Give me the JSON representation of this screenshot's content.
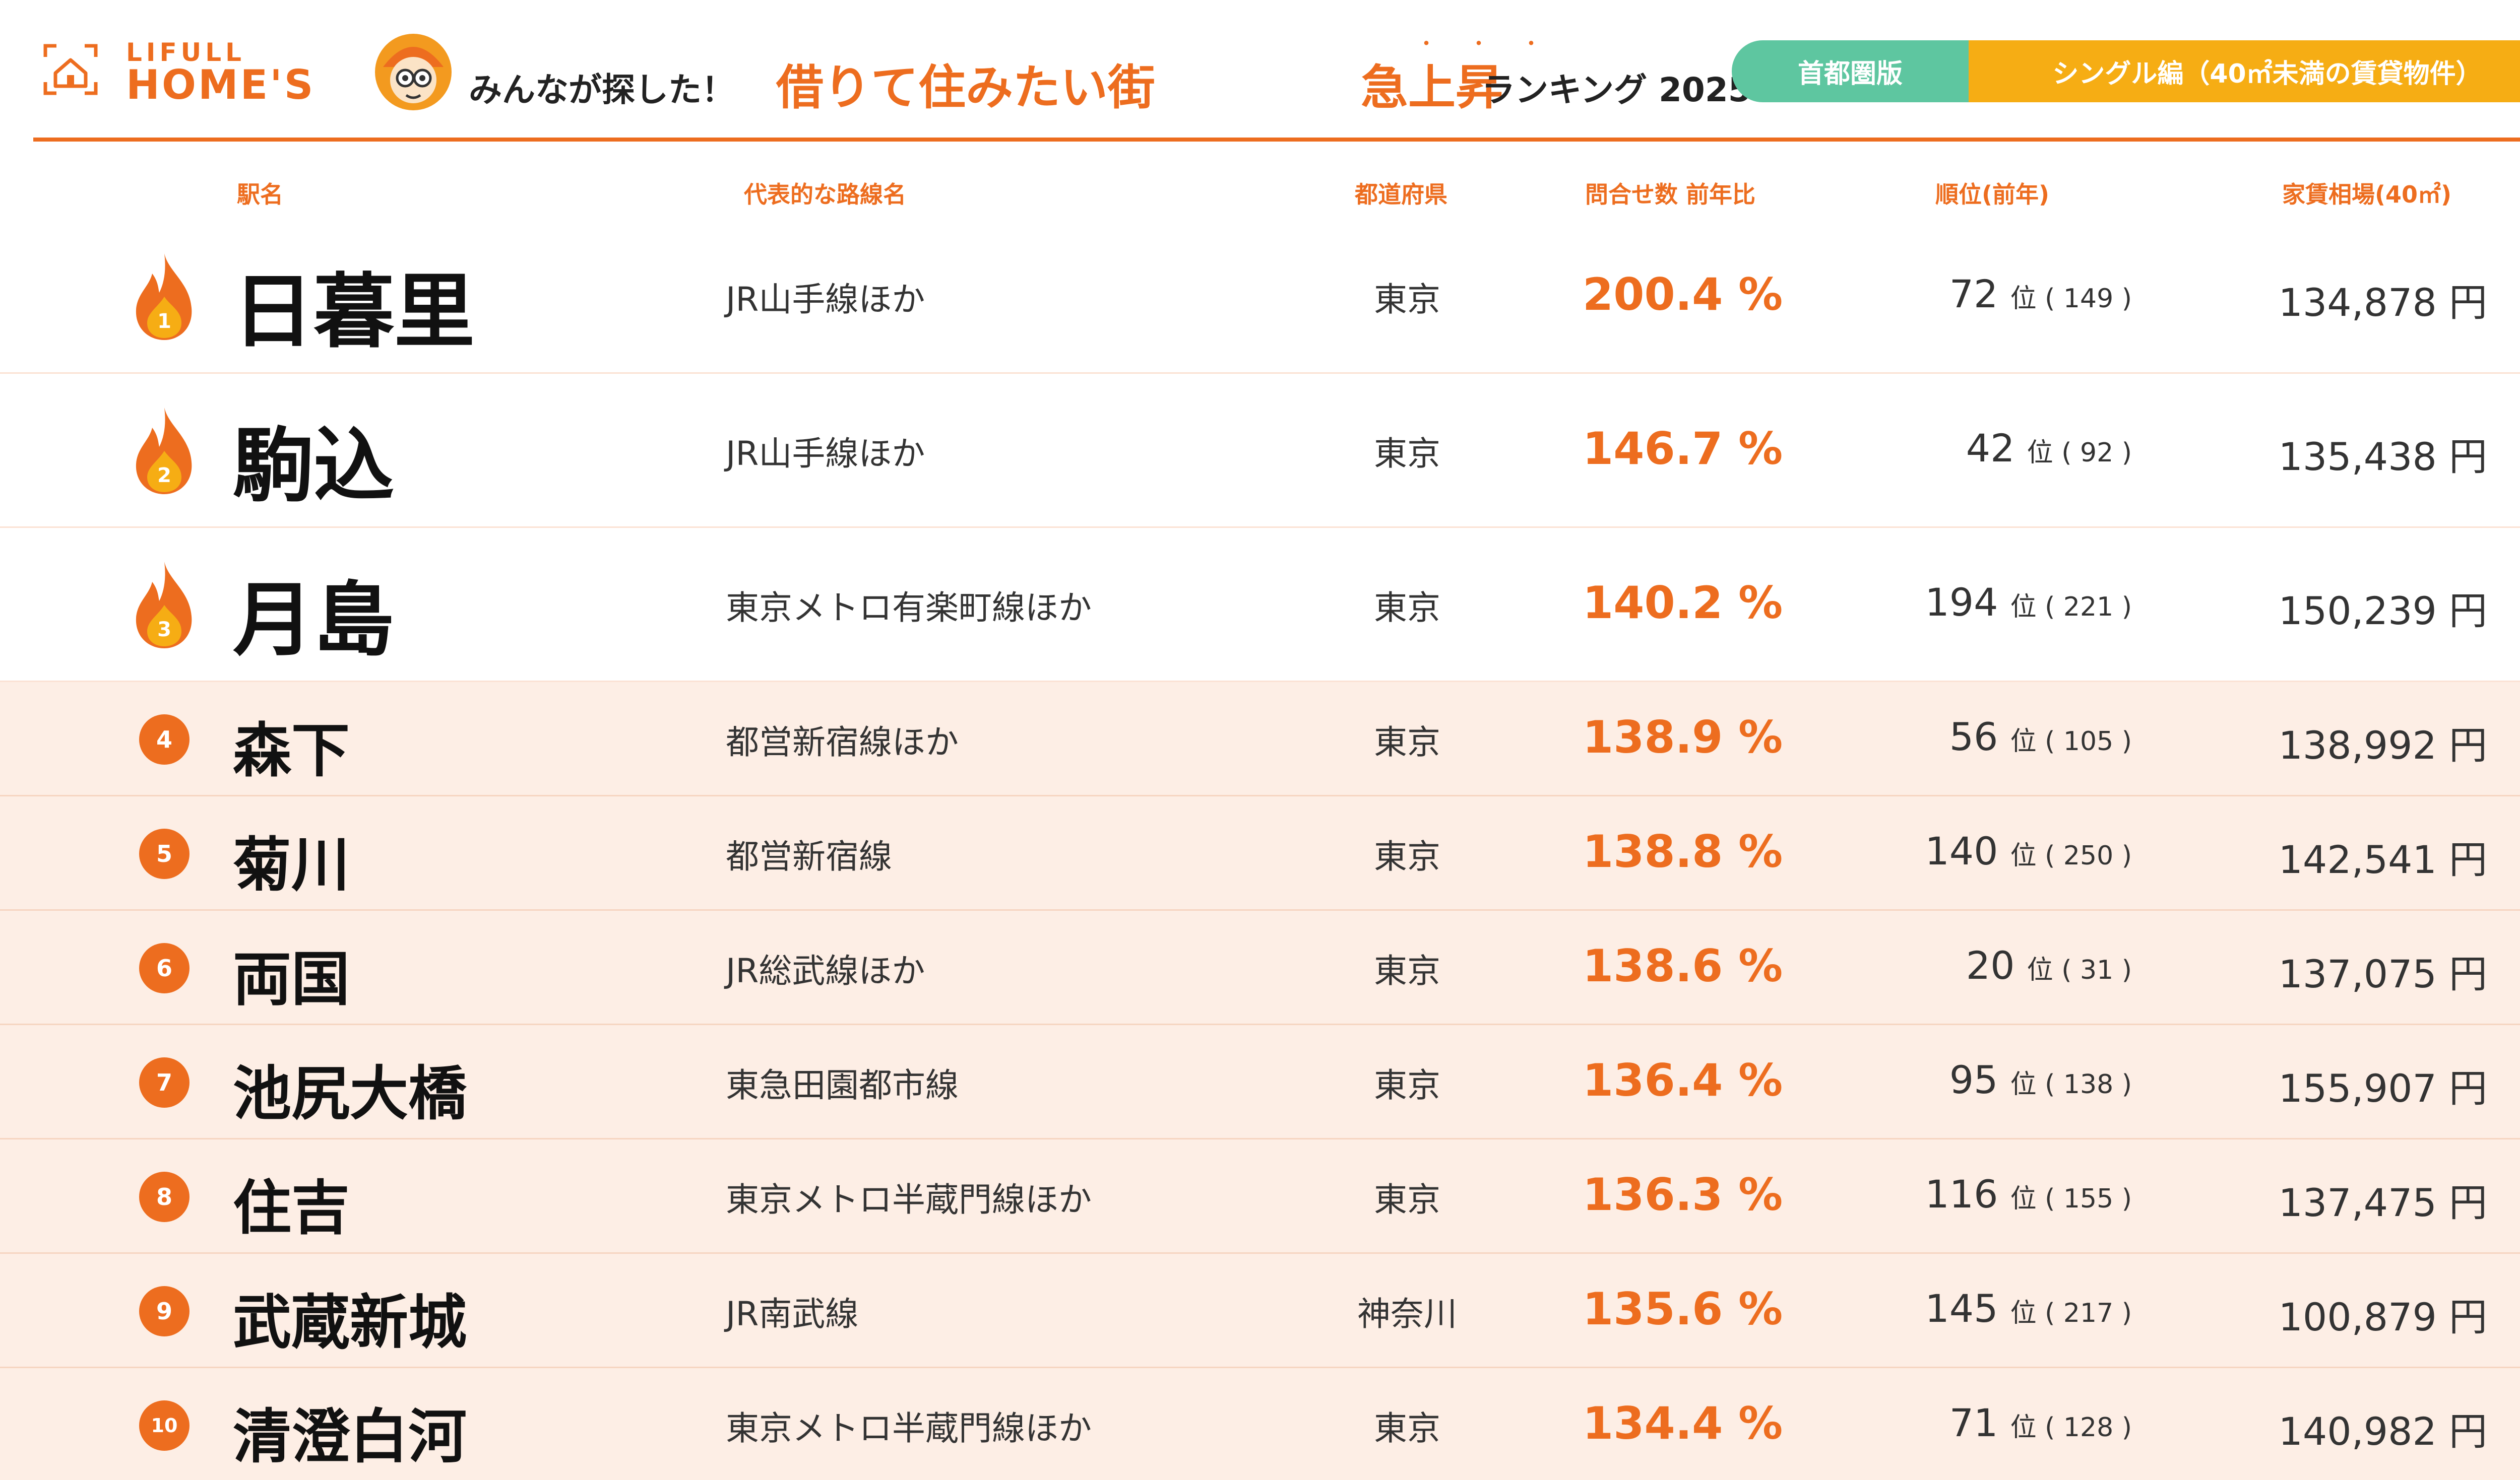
{
  "brand": {
    "line1": "LIFULL",
    "line2": "HOME'S",
    "accent_color": "#ed6d1f"
  },
  "title": {
    "pre": "みんなが探した！",
    "main": "借りて住みたい街",
    "sub": "急上昇",
    "post": "ランキング 2025",
    "emphasis_dots": "・・・"
  },
  "badges": {
    "region": "首都圏版",
    "category": "シングル編（40㎡未満の賃貸物件）",
    "region_color": "#5ec6a0",
    "category_color": "#f6ad14"
  },
  "columns": {
    "station": "駅名",
    "line": "代表的な路線名",
    "prefecture": "都道府県",
    "inquiry_ratio": "問合せ数 前年比",
    "rank": "順位(前年)",
    "rent": "家賃相場(40㎡)"
  },
  "units": {
    "percent": "%",
    "rank": "位",
    "yen": "円"
  },
  "rows": [
    {
      "no": "1",
      "station": "日暮里",
      "line": "JR山手線ほか",
      "prefecture": "東京",
      "ratio": "200.4",
      "rank": "72",
      "prev_rank": "149",
      "rent": "134,878"
    },
    {
      "no": "2",
      "station": "駒込",
      "line": "JR山手線ほか",
      "prefecture": "東京",
      "ratio": "146.7",
      "rank": "42",
      "prev_rank": "92",
      "rent": "135,438"
    },
    {
      "no": "3",
      "station": "月島",
      "line": "東京メトロ有楽町線ほか",
      "prefecture": "東京",
      "ratio": "140.2",
      "rank": "194",
      "prev_rank": "221",
      "rent": "150,239"
    },
    {
      "no": "4",
      "station": "森下",
      "line": "都営新宿線ほか",
      "prefecture": "東京",
      "ratio": "138.9",
      "rank": "56",
      "prev_rank": "105",
      "rent": "138,992"
    },
    {
      "no": "5",
      "station": "菊川",
      "line": "都営新宿線",
      "prefecture": "東京",
      "ratio": "138.8",
      "rank": "140",
      "prev_rank": "250",
      "rent": "142,541"
    },
    {
      "no": "6",
      "station": "両国",
      "line": "JR総武線ほか",
      "prefecture": "東京",
      "ratio": "138.6",
      "rank": "20",
      "prev_rank": "31",
      "rent": "137,075"
    },
    {
      "no": "7",
      "station": "池尻大橋",
      "line": "東急田園都市線",
      "prefecture": "東京",
      "ratio": "136.4",
      "rank": "95",
      "prev_rank": "138",
      "rent": "155,907"
    },
    {
      "no": "8",
      "station": "住吉",
      "line": "東京メトロ半蔵門線ほか",
      "prefecture": "東京",
      "ratio": "136.3",
      "rank": "116",
      "prev_rank": "155",
      "rent": "137,475"
    },
    {
      "no": "9",
      "station": "武蔵新城",
      "line": "JR南武線",
      "prefecture": "神奈川",
      "ratio": "135.6",
      "rank": "145",
      "prev_rank": "217",
      "rent": "100,879"
    },
    {
      "no": "10",
      "station": "清澄白河",
      "line": "東京メトロ半蔵門線ほか",
      "prefecture": "東京",
      "ratio": "134.4",
      "rank": "71",
      "prev_rank": "128",
      "rent": "140,982"
    }
  ]
}
